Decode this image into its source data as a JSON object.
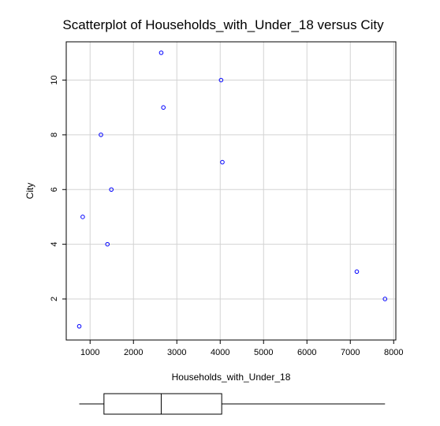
{
  "chart_data": {
    "type": "scatter",
    "title": "Scatterplot of Households_with_Under_18 versus City",
    "xlabel": "Households_with_Under_18",
    "ylabel": "City",
    "xlim": [
      450,
      8050
    ],
    "ylim": [
      0.5,
      11.4
    ],
    "xticks": [
      1000,
      2000,
      3000,
      4000,
      5000,
      6000,
      7000,
      8000
    ],
    "yticks": [
      2,
      4,
      6,
      8,
      10
    ],
    "grid": true,
    "colors": {
      "point": "#0000ff",
      "grid": "#d3d3d3"
    },
    "points": [
      {
        "x": 750,
        "y": 1
      },
      {
        "x": 7800,
        "y": 2
      },
      {
        "x": 7150,
        "y": 3
      },
      {
        "x": 1400,
        "y": 4
      },
      {
        "x": 830,
        "y": 5
      },
      {
        "x": 1490,
        "y": 6
      },
      {
        "x": 4050,
        "y": 7
      },
      {
        "x": 1250,
        "y": 8
      },
      {
        "x": 2690,
        "y": 9
      },
      {
        "x": 4020,
        "y": 10
      },
      {
        "x": 2640,
        "y": 11
      }
    ],
    "boxplot": {
      "min": 750,
      "q1": 1320,
      "median": 2640,
      "q3": 4035,
      "max": 7800
    }
  }
}
